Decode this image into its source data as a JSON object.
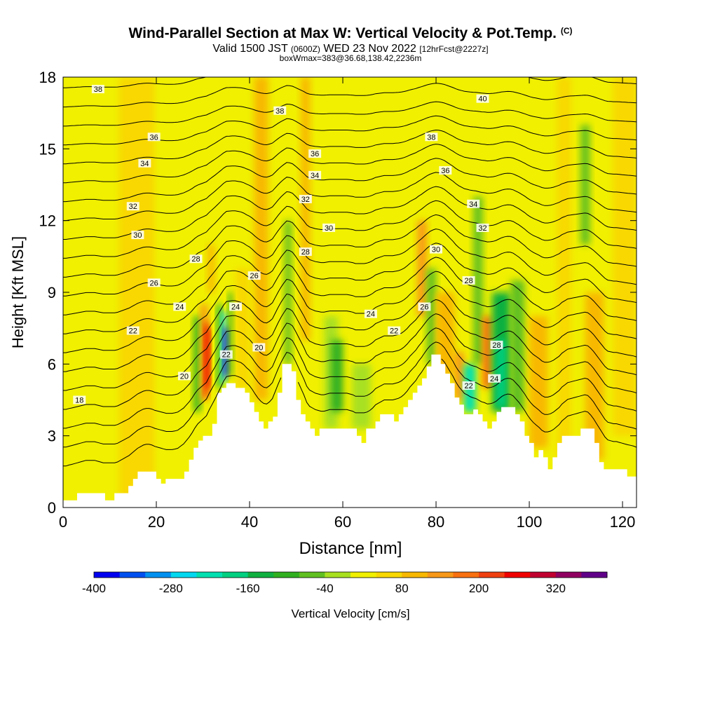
{
  "titles": {
    "main": "Wind-Parallel Section at Max W: Vertical Velocity & Pot.Temp.",
    "main_mark": "(C)",
    "valid_a": "Valid 1500 JST",
    "valid_b": "(0600Z)",
    "valid_c": "WED 23 Nov 2022",
    "valid_d": "[12hrFcst@2227z]",
    "box": "boxWmax=383@36.68,138.42,2236m"
  },
  "colors": {
    "terrain": "#ffffff",
    "contour": "#000000",
    "background": "#ffffff"
  },
  "chart_data": {
    "type": "heatmap",
    "subtype": "cross-section filled contours with theta contour overlay",
    "xlabel": "Distance [nm]",
    "ylabel": "Height [Kft MSL]",
    "xlim": [
      0,
      123
    ],
    "ylim": [
      0,
      18
    ],
    "xticks": [
      0,
      20,
      40,
      60,
      80,
      100,
      120
    ],
    "yticks": [
      0,
      3,
      6,
      9,
      12,
      15,
      18
    ],
    "grid": false,
    "colorbar": {
      "label": "Vertical Velocity [cm/s]",
      "tick_labels": [
        -400,
        -280,
        -160,
        -40,
        80,
        200,
        320
      ],
      "levels": [
        -400,
        -360,
        -320,
        -280,
        -240,
        -200,
        -160,
        -120,
        -80,
        -40,
        0,
        40,
        80,
        120,
        160,
        200,
        240,
        280,
        320,
        360
      ],
      "colors": [
        "#0000f0",
        "#0050f0",
        "#0090f0",
        "#00d8f0",
        "#00e0b0",
        "#00d080",
        "#10b040",
        "#30b020",
        "#60c020",
        "#a8e020",
        "#f0f000",
        "#f8d800",
        "#f8b800",
        "#f89818",
        "#f87010",
        "#f04010",
        "#f00000",
        "#c00030",
        "#900060",
        "#600088"
      ]
    },
    "terrain_profile": [
      {
        "x": 0,
        "y": 0.3
      },
      {
        "x": 3,
        "y": 0.3
      },
      {
        "x": 3,
        "y": 0.6
      },
      {
        "x": 9,
        "y": 0.6
      },
      {
        "x": 9,
        "y": 0.3
      },
      {
        "x": 11,
        "y": 0.3
      },
      {
        "x": 11,
        "y": 0.6
      },
      {
        "x": 14,
        "y": 0.6
      },
      {
        "x": 14,
        "y": 0.9
      },
      {
        "x": 15,
        "y": 0.9
      },
      {
        "x": 15,
        "y": 1.2
      },
      {
        "x": 16,
        "y": 1.2
      },
      {
        "x": 16,
        "y": 1.5
      },
      {
        "x": 20,
        "y": 1.5
      },
      {
        "x": 20,
        "y": 1.2
      },
      {
        "x": 21,
        "y": 1.2
      },
      {
        "x": 21,
        "y": 1.0
      },
      {
        "x": 22,
        "y": 1.0
      },
      {
        "x": 22,
        "y": 1.2
      },
      {
        "x": 26,
        "y": 1.2
      },
      {
        "x": 26,
        "y": 1.5
      },
      {
        "x": 27,
        "y": 1.5
      },
      {
        "x": 27,
        "y": 2.0
      },
      {
        "x": 28,
        "y": 2.0
      },
      {
        "x": 28,
        "y": 2.5
      },
      {
        "x": 29,
        "y": 2.5
      },
      {
        "x": 29,
        "y": 2.8
      },
      {
        "x": 30,
        "y": 2.8
      },
      {
        "x": 30,
        "y": 3.0
      },
      {
        "x": 32,
        "y": 3.0
      },
      {
        "x": 32,
        "y": 3.5
      },
      {
        "x": 33,
        "y": 3.5
      },
      {
        "x": 33,
        "y": 4.8
      },
      {
        "x": 34,
        "y": 4.8
      },
      {
        "x": 34,
        "y": 5.0
      },
      {
        "x": 35,
        "y": 5.0
      },
      {
        "x": 35,
        "y": 5.2
      },
      {
        "x": 37,
        "y": 5.2
      },
      {
        "x": 37,
        "y": 5.0
      },
      {
        "x": 39,
        "y": 5.0
      },
      {
        "x": 39,
        "y": 4.8
      },
      {
        "x": 40,
        "y": 4.8
      },
      {
        "x": 40,
        "y": 4.4
      },
      {
        "x": 41,
        "y": 4.4
      },
      {
        "x": 41,
        "y": 4.0
      },
      {
        "x": 42,
        "y": 4.0
      },
      {
        "x": 42,
        "y": 3.6
      },
      {
        "x": 43,
        "y": 3.6
      },
      {
        "x": 43,
        "y": 3.3
      },
      {
        "x": 44,
        "y": 3.3
      },
      {
        "x": 44,
        "y": 3.6
      },
      {
        "x": 45,
        "y": 3.6
      },
      {
        "x": 45,
        "y": 3.8
      },
      {
        "x": 46,
        "y": 3.8
      },
      {
        "x": 46,
        "y": 4.8
      },
      {
        "x": 47,
        "y": 4.8
      },
      {
        "x": 47,
        "y": 6.0
      },
      {
        "x": 49,
        "y": 6.0
      },
      {
        "x": 49,
        "y": 5.7
      },
      {
        "x": 50,
        "y": 5.7
      },
      {
        "x": 50,
        "y": 4.5
      },
      {
        "x": 51,
        "y": 4.5
      },
      {
        "x": 51,
        "y": 3.9
      },
      {
        "x": 52,
        "y": 3.9
      },
      {
        "x": 52,
        "y": 3.6
      },
      {
        "x": 53,
        "y": 3.6
      },
      {
        "x": 53,
        "y": 3.3
      },
      {
        "x": 54,
        "y": 3.3
      },
      {
        "x": 54,
        "y": 3.0
      },
      {
        "x": 55,
        "y": 3.0
      },
      {
        "x": 55,
        "y": 3.3
      },
      {
        "x": 63,
        "y": 3.3
      },
      {
        "x": 63,
        "y": 3.0
      },
      {
        "x": 64,
        "y": 3.0
      },
      {
        "x": 64,
        "y": 2.7
      },
      {
        "x": 65,
        "y": 2.7
      },
      {
        "x": 65,
        "y": 3.3
      },
      {
        "x": 67,
        "y": 3.3
      },
      {
        "x": 67,
        "y": 3.6
      },
      {
        "x": 68,
        "y": 3.6
      },
      {
        "x": 68,
        "y": 3.9
      },
      {
        "x": 71,
        "y": 3.9
      },
      {
        "x": 71,
        "y": 3.6
      },
      {
        "x": 72,
        "y": 3.6
      },
      {
        "x": 72,
        "y": 3.9
      },
      {
        "x": 73,
        "y": 3.9
      },
      {
        "x": 73,
        "y": 4.2
      },
      {
        "x": 74,
        "y": 4.2
      },
      {
        "x": 74,
        "y": 4.5
      },
      {
        "x": 75,
        "y": 4.5
      },
      {
        "x": 75,
        "y": 4.8
      },
      {
        "x": 76,
        "y": 4.8
      },
      {
        "x": 76,
        "y": 5.1
      },
      {
        "x": 77,
        "y": 5.1
      },
      {
        "x": 77,
        "y": 5.4
      },
      {
        "x": 78,
        "y": 5.4
      },
      {
        "x": 78,
        "y": 5.9
      },
      {
        "x": 79,
        "y": 5.9
      },
      {
        "x": 79,
        "y": 6.4
      },
      {
        "x": 81,
        "y": 6.4
      },
      {
        "x": 81,
        "y": 6.0
      },
      {
        "x": 82,
        "y": 6.0
      },
      {
        "x": 82,
        "y": 5.6
      },
      {
        "x": 83,
        "y": 5.6
      },
      {
        "x": 83,
        "y": 5.2
      },
      {
        "x": 84,
        "y": 5.2
      },
      {
        "x": 84,
        "y": 4.6
      },
      {
        "x": 85,
        "y": 4.6
      },
      {
        "x": 85,
        "y": 4.3
      },
      {
        "x": 86,
        "y": 4.3
      },
      {
        "x": 86,
        "y": 3.9
      },
      {
        "x": 88,
        "y": 3.9
      },
      {
        "x": 88,
        "y": 4.1
      },
      {
        "x": 89,
        "y": 4.1
      },
      {
        "x": 89,
        "y": 3.9
      },
      {
        "x": 90,
        "y": 3.9
      },
      {
        "x": 90,
        "y": 3.6
      },
      {
        "x": 91,
        "y": 3.6
      },
      {
        "x": 91,
        "y": 3.3
      },
      {
        "x": 92,
        "y": 3.3
      },
      {
        "x": 92,
        "y": 3.6
      },
      {
        "x": 93,
        "y": 3.6
      },
      {
        "x": 93,
        "y": 4.0
      },
      {
        "x": 94,
        "y": 4.0
      },
      {
        "x": 94,
        "y": 4.2
      },
      {
        "x": 97,
        "y": 4.2
      },
      {
        "x": 97,
        "y": 3.9
      },
      {
        "x": 98,
        "y": 3.9
      },
      {
        "x": 98,
        "y": 3.6
      },
      {
        "x": 99,
        "y": 3.6
      },
      {
        "x": 99,
        "y": 3.0
      },
      {
        "x": 100,
        "y": 3.0
      },
      {
        "x": 100,
        "y": 2.7
      },
      {
        "x": 101,
        "y": 2.7
      },
      {
        "x": 101,
        "y": 2.1
      },
      {
        "x": 102,
        "y": 2.1
      },
      {
        "x": 102,
        "y": 2.4
      },
      {
        "x": 103,
        "y": 2.4
      },
      {
        "x": 103,
        "y": 2.1
      },
      {
        "x": 104,
        "y": 2.1
      },
      {
        "x": 104,
        "y": 1.6
      },
      {
        "x": 105,
        "y": 1.6
      },
      {
        "x": 105,
        "y": 2.1
      },
      {
        "x": 106,
        "y": 2.1
      },
      {
        "x": 106,
        "y": 2.7
      },
      {
        "x": 107,
        "y": 2.7
      },
      {
        "x": 107,
        "y": 3.0
      },
      {
        "x": 111,
        "y": 3.0
      },
      {
        "x": 111,
        "y": 3.3
      },
      {
        "x": 114,
        "y": 3.3
      },
      {
        "x": 114,
        "y": 2.7
      },
      {
        "x": 115,
        "y": 2.7
      },
      {
        "x": 115,
        "y": 1.9
      },
      {
        "x": 116,
        "y": 1.9
      },
      {
        "x": 116,
        "y": 1.6
      },
      {
        "x": 121,
        "y": 1.6
      },
      {
        "x": 121,
        "y": 1.3
      },
      {
        "x": 123,
        "y": 1.3
      }
    ],
    "vertical_velocity_cells": [
      {
        "x": [
          0,
          123
        ],
        "y": [
          0,
          18
        ],
        "w": 20
      },
      {
        "x": [
          0,
          12
        ],
        "y": [
          1,
          8
        ],
        "w": 10
      },
      {
        "x": [
          12,
          20
        ],
        "y": [
          0,
          18
        ],
        "w": 40
      },
      {
        "x": [
          20,
          28
        ],
        "y": [
          0,
          18
        ],
        "w": 20
      },
      {
        "x": [
          28,
          29.5
        ],
        "y": [
          4,
          8
        ],
        "w": -120
      },
      {
        "x": [
          29.5,
          31
        ],
        "y": [
          4.5,
          8.5
        ],
        "w": 140
      },
      {
        "x": [
          30.2,
          31.2
        ],
        "y": [
          4.6,
          7.8
        ],
        "w": 200
      },
      {
        "x": [
          30.5,
          31.5
        ],
        "y": [
          5,
          7.5
        ],
        "w": 240
      },
      {
        "x": [
          31,
          32.5
        ],
        "y": [
          9,
          11
        ],
        "w": 80
      },
      {
        "x": [
          33,
          34
        ],
        "y": [
          5,
          8.5
        ],
        "w": -160
      },
      {
        "x": [
          34,
          35
        ],
        "y": [
          5.2,
          8.2
        ],
        "w": -280
      },
      {
        "x": [
          34.5,
          35.5
        ],
        "y": [
          5.5,
          7.5
        ],
        "w": -380
      },
      {
        "x": [
          35.5,
          36.5
        ],
        "y": [
          5.5,
          9
        ],
        "w": -120
      },
      {
        "x": [
          37,
          40
        ],
        "y": [
          5,
          10
        ],
        "w": 60
      },
      {
        "x": [
          41,
          44
        ],
        "y": [
          4.5,
          18
        ],
        "w": 80
      },
      {
        "x": [
          47.5,
          49
        ],
        "y": [
          6,
          12
        ],
        "w": -80
      },
      {
        "x": [
          51,
          53
        ],
        "y": [
          7,
          18
        ],
        "w": 80
      },
      {
        "x": [
          56,
          59
        ],
        "y": [
          3.3,
          8
        ],
        "w": -40
      },
      {
        "x": [
          57.5,
          60
        ],
        "y": [
          4,
          7
        ],
        "w": -120
      },
      {
        "x": [
          62,
          66
        ],
        "y": [
          3.3,
          6
        ],
        "w": -40
      },
      {
        "x": [
          76,
          78
        ],
        "y": [
          8,
          12
        ],
        "w": 120
      },
      {
        "x": [
          78,
          80
        ],
        "y": [
          6,
          10
        ],
        "w": -80
      },
      {
        "x": [
          80,
          84
        ],
        "y": [
          5.5,
          9
        ],
        "w": 100
      },
      {
        "x": [
          84,
          86
        ],
        "y": [
          4.5,
          6.5
        ],
        "w": 140
      },
      {
        "x": [
          86,
          88.5
        ],
        "y": [
          4,
          6
        ],
        "w": -240
      },
      {
        "x": [
          88,
          90
        ],
        "y": [
          6,
          13
        ],
        "w": -60
      },
      {
        "x": [
          90,
          92
        ],
        "y": [
          5,
          8
        ],
        "w": 160
      },
      {
        "x": [
          92,
          96
        ],
        "y": [
          4,
          9
        ],
        "w": -160
      },
      {
        "x": [
          93,
          95
        ],
        "y": [
          4.2,
          7
        ],
        "w": -200
      },
      {
        "x": [
          96,
          99
        ],
        "y": [
          4,
          9.5
        ],
        "w": -80
      },
      {
        "x": [
          100,
          104
        ],
        "y": [
          2.5,
          8
        ],
        "w": 80
      },
      {
        "x": [
          106,
          109
        ],
        "y": [
          2,
          18
        ],
        "w": 60
      },
      {
        "x": [
          111,
          113
        ],
        "y": [
          11,
          16
        ],
        "w": -60
      },
      {
        "x": [
          112,
          116
        ],
        "y": [
          2,
          9
        ],
        "w": 100
      },
      {
        "x": [
          118,
          123
        ],
        "y": [
          3,
          18
        ],
        "w": 60
      }
    ],
    "theta_levels": [
      18,
      19,
      20,
      21,
      22,
      23,
      24,
      25,
      26,
      27,
      28,
      29,
      30,
      31,
      32,
      33,
      34,
      35,
      36,
      37,
      38,
      39,
      40
    ],
    "theta_labels": [
      {
        "x": 3.5,
        "y": 4.5,
        "text": "18"
      },
      {
        "x": 26,
        "y": 5.5,
        "text": "20"
      },
      {
        "x": 42,
        "y": 6.7,
        "text": "20"
      },
      {
        "x": 15,
        "y": 7.4,
        "text": "22"
      },
      {
        "x": 35,
        "y": 6.4,
        "text": "22"
      },
      {
        "x": 71,
        "y": 7.4,
        "text": "22"
      },
      {
        "x": 87,
        "y": 5.1,
        "text": "22"
      },
      {
        "x": 25,
        "y": 8.4,
        "text": "24"
      },
      {
        "x": 37,
        "y": 8.4,
        "text": "24"
      },
      {
        "x": 66,
        "y": 8.1,
        "text": "24"
      },
      {
        "x": 92.5,
        "y": 5.4,
        "text": "24"
      },
      {
        "x": 19.5,
        "y": 9.4,
        "text": "26"
      },
      {
        "x": 41,
        "y": 9.7,
        "text": "26"
      },
      {
        "x": 77.5,
        "y": 8.4,
        "text": "26"
      },
      {
        "x": 28.5,
        "y": 10.4,
        "text": "28"
      },
      {
        "x": 52,
        "y": 10.7,
        "text": "28"
      },
      {
        "x": 87,
        "y": 9.5,
        "text": "28"
      },
      {
        "x": 93,
        "y": 6.8,
        "text": "28"
      },
      {
        "x": 16,
        "y": 11.4,
        "text": "30"
      },
      {
        "x": 57,
        "y": 11.7,
        "text": "30"
      },
      {
        "x": 80,
        "y": 10.8,
        "text": "30"
      },
      {
        "x": 15,
        "y": 12.6,
        "text": "32"
      },
      {
        "x": 52,
        "y": 12.9,
        "text": "32"
      },
      {
        "x": 90,
        "y": 11.7,
        "text": "32"
      },
      {
        "x": 17.5,
        "y": 14.4,
        "text": "34"
      },
      {
        "x": 54,
        "y": 13.9,
        "text": "34"
      },
      {
        "x": 88,
        "y": 12.7,
        "text": "34"
      },
      {
        "x": 19.5,
        "y": 15.5,
        "text": "36"
      },
      {
        "x": 54,
        "y": 14.8,
        "text": "36"
      },
      {
        "x": 82,
        "y": 14.1,
        "text": "36"
      },
      {
        "x": 7.5,
        "y": 17.5,
        "text": "38"
      },
      {
        "x": 46.5,
        "y": 16.6,
        "text": "38"
      },
      {
        "x": 79,
        "y": 15.5,
        "text": "38"
      },
      {
        "x": 90,
        "y": 17.1,
        "text": "40"
      }
    ]
  }
}
